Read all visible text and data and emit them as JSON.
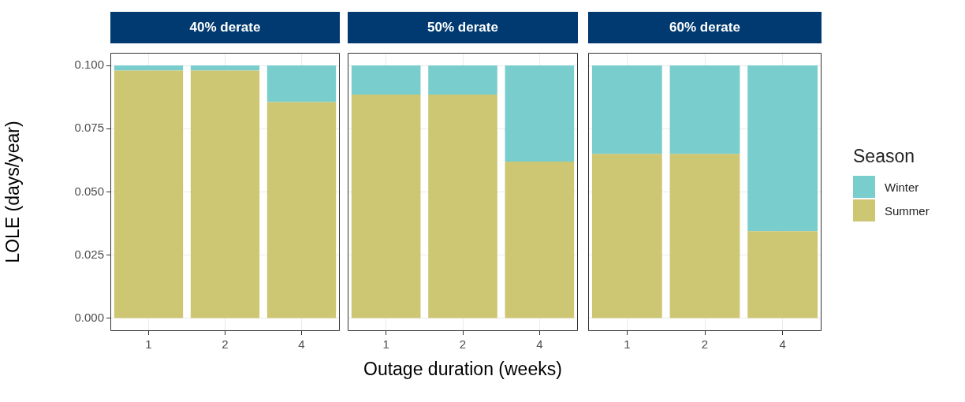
{
  "chart_data": [
    {
      "type": "bar",
      "title": "40% derate",
      "ylabel": "LOLE (days/year)",
      "categories": [
        "1",
        "2",
        "4"
      ],
      "stacked": true,
      "grid": true,
      "ylim": [
        -0.005,
        0.105
      ],
      "yticks": [
        {
          "value": 0,
          "label": "0.000"
        },
        {
          "value": 0.025,
          "label": "0.025"
        },
        {
          "value": 0.05,
          "label": "0.050"
        },
        {
          "value": 0.075,
          "label": "0.075"
        },
        {
          "value": 0.1,
          "label": "0.100"
        }
      ],
      "series": [
        {
          "color": "#cdc673",
          "values": [
            0.098,
            0.098,
            0.0855
          ]
        },
        {
          "color": "#79cdcd",
          "values": [
            0.002,
            0.002,
            0.0145
          ]
        }
      ]
    },
    {
      "type": "bar",
      "title": "50% derate",
      "xlabel": "Outage duration (weeks)",
      "categories": [
        "1",
        "2",
        "4"
      ],
      "stacked": true,
      "grid": true,
      "tick_labels": "x",
      "ylim": [
        -0.005,
        0.105
      ],
      "yticks": [
        {
          "value": 0,
          "label": null
        },
        {
          "value": 0.025,
          "label": null
        },
        {
          "value": 0.05,
          "label": null
        },
        {
          "value": 0.075,
          "label": null
        },
        {
          "value": 0.1,
          "label": null
        }
      ],
      "series": [
        {
          "color": "#cdc673",
          "values": [
            0.0885,
            0.0885,
            0.062
          ]
        },
        {
          "color": "#79cdcd",
          "values": [
            0.0115,
            0.0115,
            0.038
          ]
        }
      ]
    },
    {
      "type": "bar",
      "title": "60% derate",
      "categories": [
        "1",
        "2",
        "4"
      ],
      "stacked": true,
      "grid": true,
      "tick_labels": "x",
      "legend": "right",
      "legend_title": "Season",
      "ylim": [
        -0.005,
        0.105
      ],
      "yticks": [
        {
          "value": 0,
          "label": null
        },
        {
          "value": 0.025,
          "label": null
        },
        {
          "value": 0.05,
          "label": null
        },
        {
          "value": 0.075,
          "label": null
        },
        {
          "value": 0.1,
          "label": null
        }
      ],
      "series": [
        {
          "name": "Summer",
          "color": "#cdc673",
          "values": [
            0.065,
            0.065,
            0.0345
          ]
        },
        {
          "name": "Winter",
          "color": "#79cdcd",
          "values": [
            0.035,
            0.035,
            0.0655
          ]
        }
      ]
    }
  ]
}
